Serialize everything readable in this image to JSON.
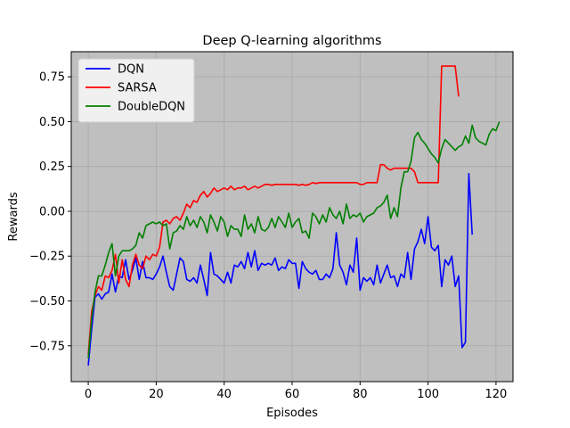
{
  "chart_data": {
    "type": "line",
    "title": "Deep Q-learning algorithms",
    "xlabel": "Episodes",
    "ylabel": "Rewards",
    "xlim": [
      -5,
      125
    ],
    "ylim": [
      -0.95,
      0.89
    ],
    "xticks": [
      0,
      20,
      40,
      60,
      80,
      100,
      120
    ],
    "yticks": [
      -0.75,
      -0.5,
      -0.25,
      0.0,
      0.25,
      0.5,
      0.75
    ],
    "xtick_labels": [
      "0",
      "20",
      "40",
      "60",
      "80",
      "100",
      "120"
    ],
    "ytick_labels": [
      "−0.75",
      "−0.50",
      "−0.25",
      "0.00",
      "0.25",
      "0.50",
      "0.75"
    ],
    "grid": true,
    "background": "#bfbfbf",
    "legend_position": "upper-left",
    "series": [
      {
        "name": "DQN",
        "color": "#0000ff",
        "values": [
          -0.86,
          -0.66,
          -0.48,
          -0.46,
          -0.49,
          -0.46,
          -0.45,
          -0.35,
          -0.45,
          -0.36,
          -0.37,
          -0.27,
          -0.38,
          -0.33,
          -0.26,
          -0.38,
          -0.28,
          -0.37,
          -0.37,
          -0.38,
          -0.35,
          -0.31,
          -0.25,
          -0.34,
          -0.42,
          -0.44,
          -0.35,
          -0.26,
          -0.28,
          -0.38,
          -0.39,
          -0.37,
          -0.4,
          -0.3,
          -0.38,
          -0.47,
          -0.23,
          -0.35,
          -0.36,
          -0.38,
          -0.4,
          -0.34,
          -0.4,
          -0.3,
          -0.31,
          -0.28,
          -0.32,
          -0.23,
          -0.31,
          -0.22,
          -0.33,
          -0.29,
          -0.3,
          -0.29,
          -0.3,
          -0.26,
          -0.33,
          -0.31,
          -0.32,
          -0.27,
          -0.29,
          -0.29,
          -0.43,
          -0.28,
          -0.32,
          -0.34,
          -0.35,
          -0.33,
          -0.38,
          -0.38,
          -0.35,
          -0.37,
          -0.32,
          -0.12,
          -0.3,
          -0.34,
          -0.41,
          -0.3,
          -0.34,
          -0.15,
          -0.44,
          -0.37,
          -0.39,
          -0.37,
          -0.41,
          -0.3,
          -0.4,
          -0.35,
          -0.3,
          -0.37,
          -0.36,
          -0.42,
          -0.35,
          -0.37,
          -0.23,
          -0.38,
          -0.21,
          -0.17,
          -0.1,
          -0.18,
          -0.03,
          -0.2,
          -0.22,
          -0.19,
          -0.42,
          -0.27,
          -0.3,
          -0.25,
          -0.42,
          -0.36,
          -0.76,
          -0.73,
          0.21,
          -0.13
        ]
      },
      {
        "name": "SARSA",
        "color": "#ff0000",
        "values": [
          -0.8,
          -0.56,
          -0.47,
          -0.42,
          -0.44,
          -0.36,
          -0.37,
          -0.33,
          -0.24,
          -0.4,
          -0.27,
          -0.38,
          -0.42,
          -0.3,
          -0.24,
          -0.3,
          -0.32,
          -0.25,
          -0.27,
          -0.24,
          -0.25,
          -0.2,
          -0.06,
          -0.05,
          -0.07,
          -0.04,
          -0.03,
          -0.05,
          -0.01,
          0.04,
          0.02,
          0.06,
          0.05,
          0.09,
          0.11,
          0.08,
          0.1,
          0.13,
          0.11,
          0.12,
          0.13,
          0.12,
          0.14,
          0.12,
          0.13,
          0.13,
          0.14,
          0.12,
          0.13,
          0.14,
          0.13,
          0.14,
          0.15,
          0.15,
          0.145,
          0.15,
          0.15,
          0.15,
          0.15,
          0.15,
          0.15,
          0.15,
          0.145,
          0.15,
          0.145,
          0.15,
          0.16,
          0.155,
          0.16,
          0.16,
          0.16,
          0.16,
          0.16,
          0.16,
          0.16,
          0.16,
          0.16,
          0.16,
          0.16,
          0.16,
          0.15,
          0.15,
          0.16,
          0.16,
          0.16,
          0.16,
          0.26,
          0.26,
          0.24,
          0.23,
          0.24,
          0.24,
          0.24,
          0.24,
          0.24,
          0.24,
          0.22,
          0.16,
          0.16,
          0.16,
          0.16,
          0.16,
          0.16,
          0.16,
          0.81,
          0.81,
          0.81,
          0.81,
          0.81,
          0.64
        ]
      },
      {
        "name": "DoubleDQN",
        "color": "#008000",
        "values": [
          -0.82,
          -0.6,
          -0.45,
          -0.36,
          -0.36,
          -0.3,
          -0.23,
          -0.18,
          -0.36,
          -0.25,
          -0.22,
          -0.22,
          -0.22,
          -0.21,
          -0.19,
          -0.12,
          -0.15,
          -0.08,
          -0.07,
          -0.06,
          -0.07,
          -0.06,
          -0.08,
          -0.07,
          -0.21,
          -0.12,
          -0.11,
          -0.08,
          -0.1,
          -0.03,
          -0.08,
          -0.05,
          -0.09,
          -0.03,
          -0.06,
          -0.12,
          -0.02,
          -0.06,
          -0.11,
          -0.03,
          -0.06,
          -0.14,
          -0.08,
          -0.1,
          -0.1,
          -0.14,
          -0.02,
          -0.1,
          -0.07,
          -0.12,
          -0.03,
          -0.1,
          -0.11,
          -0.09,
          -0.04,
          -0.09,
          -0.03,
          -0.06,
          -0.09,
          -0.01,
          -0.09,
          -0.06,
          -0.04,
          -0.12,
          -0.11,
          -0.15,
          -0.01,
          -0.03,
          -0.07,
          -0.02,
          -0.06,
          0.02,
          -0.02,
          -0.04,
          0.0,
          -0.07,
          0.04,
          -0.04,
          -0.02,
          -0.03,
          -0.01,
          -0.06,
          -0.03,
          -0.02,
          -0.01,
          0.02,
          0.03,
          0.05,
          0.09,
          -0.04,
          0.02,
          -0.03,
          0.13,
          0.22,
          0.22,
          0.28,
          0.41,
          0.44,
          0.4,
          0.38,
          0.35,
          0.32,
          0.3,
          0.27,
          0.35,
          0.4,
          0.38,
          0.36,
          0.34,
          0.36,
          0.37,
          0.42,
          0.38,
          0.48,
          0.41,
          0.39,
          0.38,
          0.37,
          0.43,
          0.46,
          0.45,
          0.5
        ]
      }
    ]
  }
}
